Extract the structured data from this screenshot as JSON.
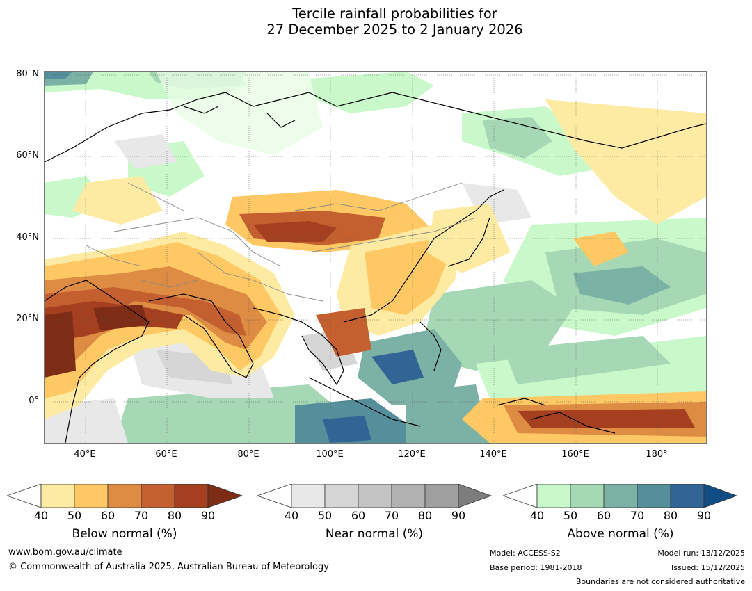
{
  "title": {
    "line1": "Tercile rainfall probabilities for",
    "line2": "27 December 2025 to 2 January 2026"
  },
  "map": {
    "lat_labels": [
      "80°N",
      "60°N",
      "40°N",
      "20°N",
      "0°"
    ],
    "lon_labels": [
      "40°E",
      "60°E",
      "80°E",
      "100°E",
      "120°E",
      "140°E",
      "160°E",
      "180°"
    ]
  },
  "legends": {
    "below": {
      "label": "Below normal (%)",
      "ticks": [
        "40",
        "50",
        "60",
        "70",
        "80",
        "90"
      ],
      "colors": [
        "#ffffff",
        "#feeba3",
        "#fec964",
        "#de8b44",
        "#c45f30",
        "#a4401f",
        "#7f2c16"
      ]
    },
    "near": {
      "label": "Near normal (%)",
      "ticks": [
        "40",
        "50",
        "60",
        "70",
        "80",
        "90"
      ],
      "colors": [
        "#ffffff",
        "#e8e8e8",
        "#d6d6d6",
        "#c4c4c4",
        "#b1b1b1",
        "#9f9f9f",
        "#7c7c7c"
      ]
    },
    "above": {
      "label": "Above normal (%)",
      "ticks": [
        "40",
        "50",
        "60",
        "70",
        "80",
        "90"
      ],
      "colors": [
        "#ffffff",
        "#c9f9ca",
        "#a6d8b5",
        "#7cb1a6",
        "#558f9c",
        "#326595",
        "#114d85"
      ]
    }
  },
  "footer": {
    "website": "www.bom.gov.au/climate",
    "copyright": "© Commonwealth of Australia 2025, Australian Bureau of Meteorology",
    "model": "Model: ACCESS-S2",
    "base_period": "Base period: 1981-2018",
    "model_run": "Model run: 13/12/2025",
    "issued": "Issued: 15/12/2025",
    "disclaimer": "Boundaries are not considered authoritative"
  }
}
